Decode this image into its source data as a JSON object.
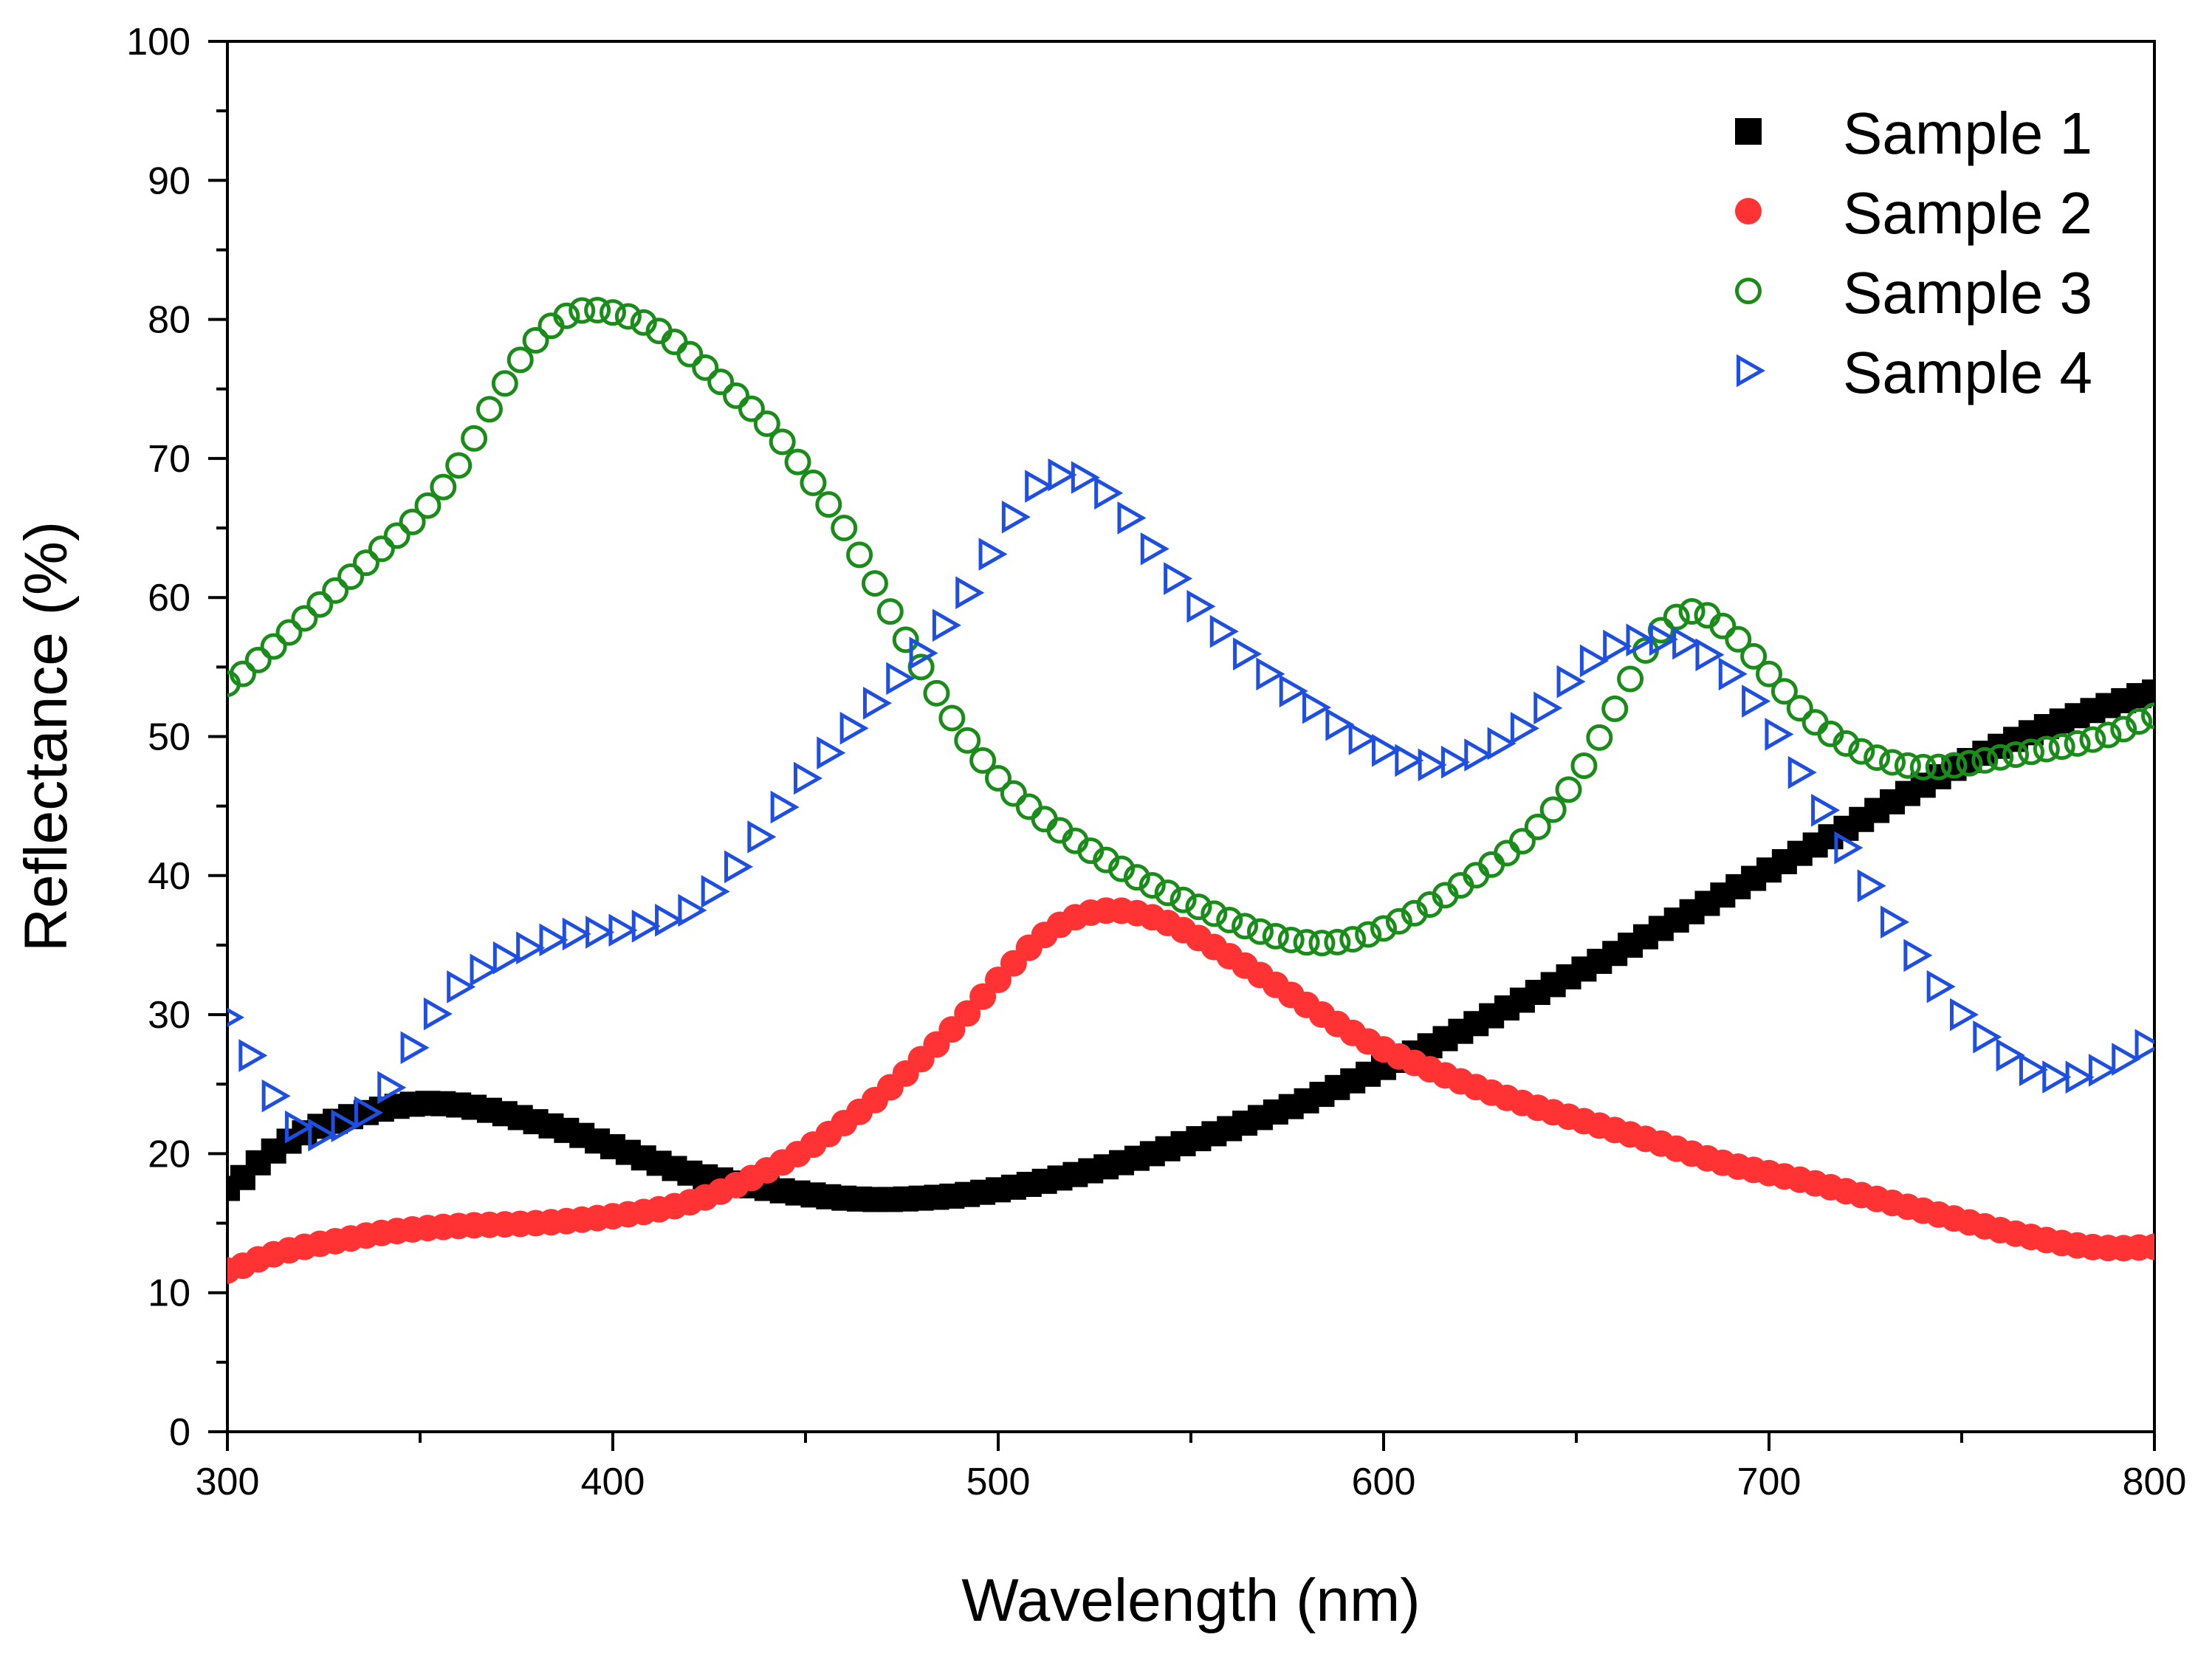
{
  "chart_data": {
    "type": "scatter",
    "title": "",
    "xlabel": "Wavelength (nm)",
    "ylabel": "Reflectance (%)",
    "xlim": [
      300,
      800
    ],
    "ylim": [
      0,
      100
    ],
    "xticks": [
      300,
      400,
      500,
      600,
      700,
      800
    ],
    "yticks": [
      0,
      10,
      20,
      30,
      40,
      50,
      60,
      70,
      80,
      90,
      100
    ],
    "grid": false,
    "legend_position": "top-right",
    "x": [
      300,
      310,
      320,
      330,
      340,
      350,
      360,
      370,
      380,
      390,
      400,
      410,
      420,
      430,
      440,
      450,
      460,
      470,
      480,
      490,
      500,
      510,
      520,
      530,
      540,
      550,
      560,
      570,
      580,
      590,
      600,
      610,
      620,
      630,
      640,
      650,
      660,
      670,
      680,
      690,
      700,
      710,
      720,
      730,
      740,
      750,
      760,
      770,
      780,
      790,
      800
    ],
    "series": [
      {
        "name": "Sample 1",
        "marker": "square",
        "filled": true,
        "color": "#000000",
        "values": [
          17.5,
          19.8,
          21.5,
          22.5,
          23.2,
          23.6,
          23.5,
          23.0,
          22.3,
          21.5,
          20.5,
          19.5,
          18.6,
          18.0,
          17.5,
          17.1,
          16.8,
          16.7,
          16.8,
          17.0,
          17.4,
          17.9,
          18.5,
          19.2,
          20.0,
          20.9,
          21.8,
          22.8,
          23.8,
          25.0,
          26.2,
          27.5,
          28.8,
          30.2,
          31.6,
          33.0,
          34.4,
          35.9,
          37.4,
          38.9,
          40.4,
          41.9,
          43.4,
          45.0,
          46.5,
          48.0,
          49.3,
          50.5,
          51.5,
          52.4,
          53.2
        ]
      },
      {
        "name": "Sample 2",
        "marker": "circle",
        "filled": true,
        "color": "#ff3333",
        "values": [
          11.6,
          12.6,
          13.3,
          13.8,
          14.3,
          14.6,
          14.8,
          14.9,
          15.0,
          15.2,
          15.5,
          15.9,
          16.5,
          17.5,
          18.8,
          20.3,
          22.2,
          24.3,
          26.8,
          29.5,
          32.5,
          35.3,
          37.0,
          37.5,
          37.0,
          35.8,
          34.2,
          32.5,
          30.7,
          29.0,
          27.5,
          26.3,
          25.2,
          24.2,
          23.3,
          22.5,
          21.7,
          20.9,
          20.0,
          19.2,
          18.6,
          18.0,
          17.3,
          16.6,
          15.9,
          15.2,
          14.5,
          13.9,
          13.4,
          13.2,
          13.3
        ]
      },
      {
        "name": "Sample 3",
        "marker": "circle",
        "filled": false,
        "color": "#1a8c1a",
        "values": [
          53.8,
          56.0,
          58.5,
          61.0,
          63.5,
          66.0,
          69.5,
          74.5,
          78.5,
          80.5,
          80.5,
          79.5,
          77.5,
          75.0,
          72.5,
          69.0,
          65.0,
          60.0,
          55.0,
          50.5,
          47.0,
          44.5,
          42.5,
          40.8,
          39.3,
          38.0,
          36.8,
          35.8,
          35.2,
          35.3,
          36.2,
          37.6,
          39.3,
          41.2,
          43.5,
          47.0,
          52.0,
          57.0,
          59.0,
          57.5,
          54.5,
          51.5,
          49.5,
          48.3,
          47.8,
          48.0,
          48.5,
          49.0,
          49.5,
          50.3,
          51.5
        ]
      },
      {
        "name": "Sample 4",
        "marker": "triangle-right",
        "filled": false,
        "color": "#1f4fe0",
        "values": [
          29.8,
          25.0,
          21.5,
          22.0,
          24.0,
          28.5,
          32.0,
          33.8,
          35.0,
          35.8,
          36.0,
          36.5,
          37.5,
          40.0,
          43.5,
          47.0,
          50.0,
          53.0,
          56.0,
          59.5,
          64.0,
          68.0,
          68.8,
          67.0,
          63.5,
          60.0,
          57.0,
          54.5,
          52.5,
          50.5,
          49.0,
          48.0,
          48.3,
          49.5,
          51.5,
          54.5,
          56.5,
          57.0,
          56.5,
          54.5,
          51.0,
          46.5,
          42.0,
          37.5,
          33.5,
          30.0,
          27.5,
          25.8,
          25.5,
          26.5,
          28.0
        ]
      }
    ]
  }
}
